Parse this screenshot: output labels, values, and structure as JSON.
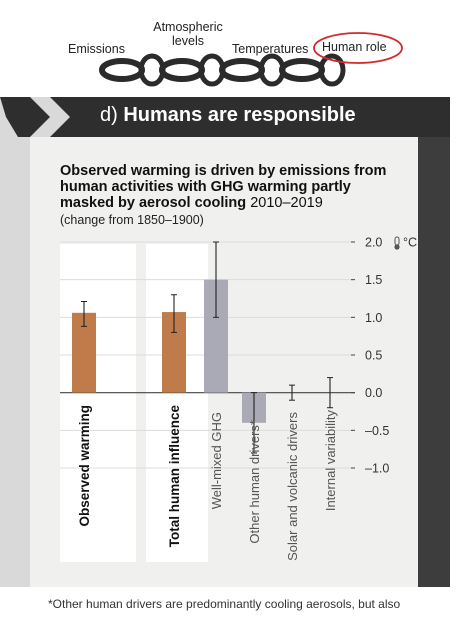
{
  "chain": {
    "labels": [
      "Emissions",
      "Atmospheric\nlevels",
      "Temperatures",
      "Human role"
    ],
    "highlight_color": "#d22b2b"
  },
  "panel": {
    "letter": "d)",
    "title": "Humans are responsible",
    "header_bg": "#2e2e2e"
  },
  "chart_title_bold": "Observed warming is driven by emissions from human activities with GHG warming partly masked by aerosol cooling",
  "chart_title_period": "2010–2019",
  "chart_subtitle": "(change from 1850–1900)",
  "footnote": "*Other human drivers are predominantly cooling aerosols, but also",
  "chart_data": {
    "type": "bar",
    "categories": [
      "Observed warming",
      "Total human influence",
      "Well-mixed GHG",
      "Other human drivers*",
      "Solar and volcanic drivers",
      "Internal variability"
    ],
    "values": [
      1.06,
      1.07,
      1.5,
      -0.4,
      0.0,
      0.0
    ],
    "error_low": [
      0.88,
      0.8,
      1.0,
      -0.8,
      -0.1,
      -0.2
    ],
    "error_high": [
      1.21,
      1.3,
      2.0,
      0.0,
      0.1,
      0.2
    ],
    "bar_colors": [
      "#c07b4a",
      "#c07b4a",
      "#a9aab6",
      "#a9aab6",
      "#a9aab6",
      "#a9aab6"
    ],
    "bold_categories": [
      true,
      true,
      false,
      false,
      false,
      false
    ],
    "ylabel": "°C",
    "ylim": [
      -1.0,
      2.0
    ],
    "yticks": [
      2.0,
      1.5,
      1.0,
      0.5,
      0.0,
      -0.5,
      -1.0
    ],
    "ytick_labels": [
      "2.0",
      "1.5",
      "1.0",
      "0.5",
      "0.0",
      "–0.5",
      "–1.0"
    ],
    "grid": true
  }
}
